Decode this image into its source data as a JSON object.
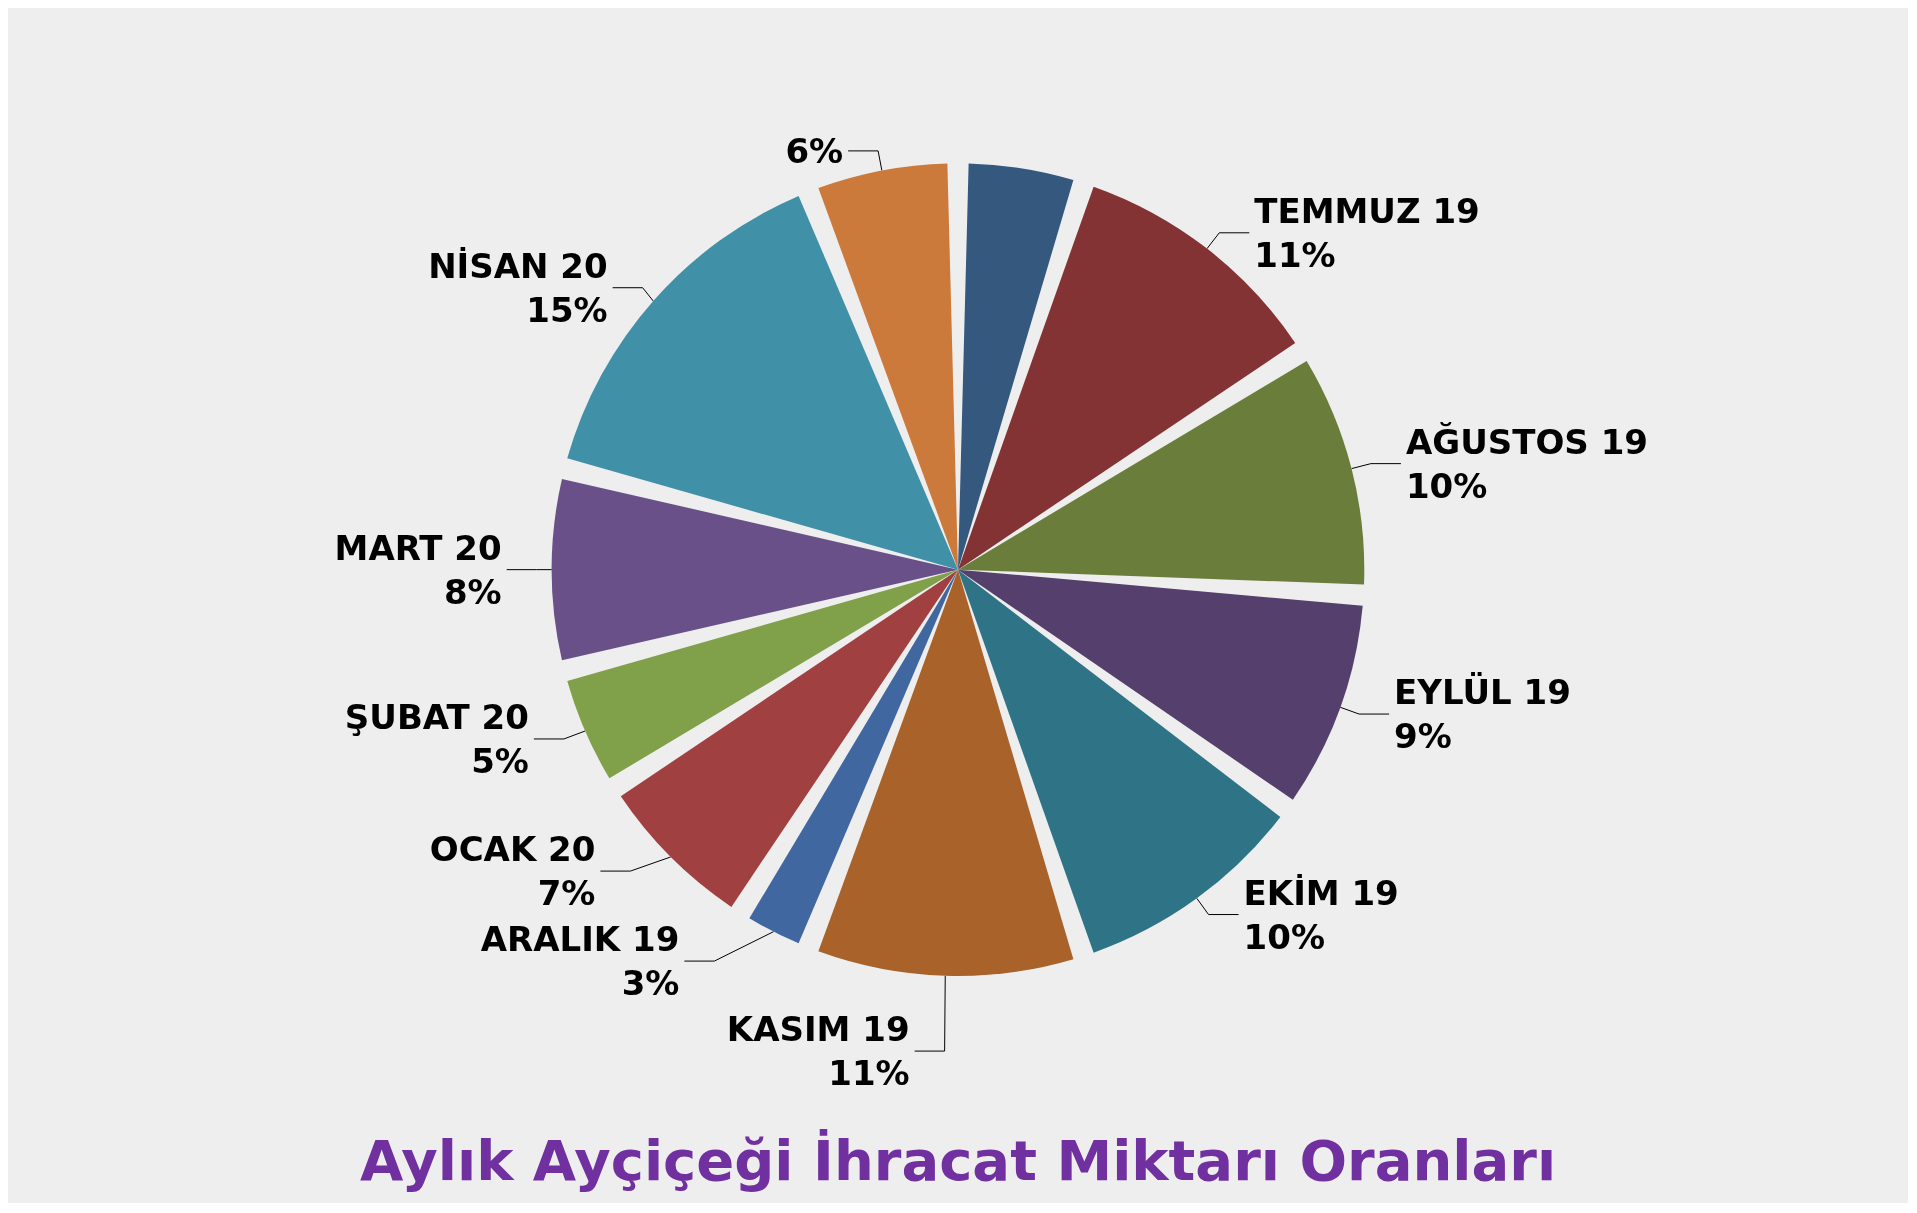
{
  "chart_data": {
    "type": "pie",
    "title": "Aylık Ayçiçeği İhracat Miktarı Oranları",
    "categories": [
      null,
      "TEMMUZ 19",
      "AĞUSTOS 19",
      "EYLÜL 19",
      "EKİM 19",
      "KASIM 19",
      "ARALIK 19",
      "OCAK 20",
      "ŞUBAT 20",
      "MART 20",
      "NİSAN 20",
      null
    ],
    "values": [
      5,
      11,
      10,
      9,
      10,
      11,
      3,
      7,
      5,
      8,
      15,
      6
    ],
    "value_labels": [
      null,
      "11%",
      "10%",
      "9%",
      "10%",
      "11%",
      "3%",
      "7%",
      "5%",
      "8%",
      "15%",
      "6%"
    ],
    "colors": [
      "#35587f",
      "#833333",
      "#6b7d3a",
      "#553f6c",
      "#2e7486",
      "#a8622a",
      "#4067a0",
      "#a04040",
      "#80a04a",
      "#6a5088",
      "#4090a8",
      "#cc7a3c"
    ]
  }
}
